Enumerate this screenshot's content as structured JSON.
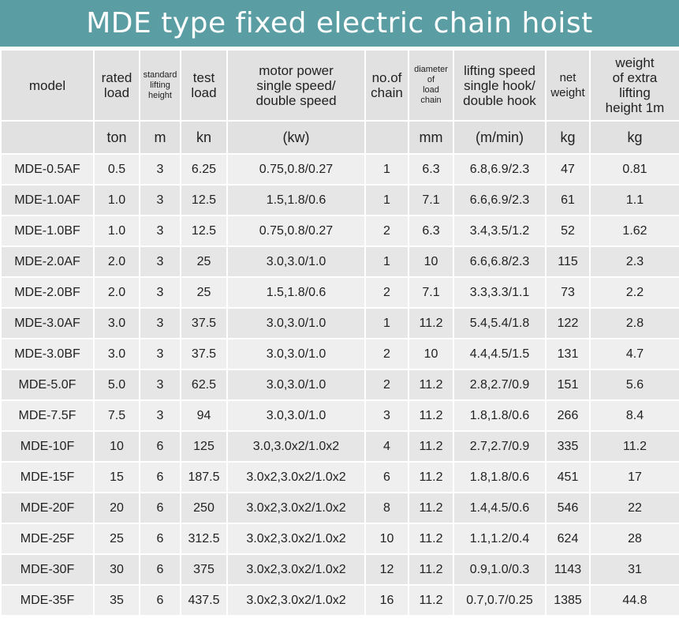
{
  "title": "MDE type fixed electric chain hoist",
  "headers": {
    "model": "model",
    "rated_load": [
      "rated",
      "load"
    ],
    "lifting_height": [
      "standard",
      "lifting",
      "height"
    ],
    "test_load": [
      "test",
      "load"
    ],
    "motor_power": [
      "motor power",
      "single speed/",
      "double speed"
    ],
    "no_of_chain": [
      "no.of",
      "chain"
    ],
    "chain_diameter": [
      "diameter",
      "of",
      "load",
      "chain"
    ],
    "lifting_speed": [
      "lifting speed",
      "single hook/",
      "double hook"
    ],
    "net_weight": [
      "net",
      "weight"
    ],
    "extra_weight": [
      "weight",
      "of extra",
      "lifting",
      "height 1m"
    ]
  },
  "units": {
    "model": "",
    "rated_load": "ton",
    "lifting_height": "m",
    "test_load": "kn",
    "motor_power": "(kw)",
    "no_of_chain": "",
    "chain_diameter": "mm",
    "lifting_speed": "(m/min)",
    "net_weight": "kg",
    "extra_weight": "kg"
  },
  "rows": [
    [
      "MDE-0.5AF",
      "0.5",
      "3",
      "6.25",
      "0.75,0.8/0.27",
      "1",
      "6.3",
      "6.8,6.9/2.3",
      "47",
      "0.81"
    ],
    [
      "MDE-1.0AF",
      "1.0",
      "3",
      "12.5",
      "1.5,1.8/0.6",
      "1",
      "7.1",
      "6.6,6.9/2.3",
      "61",
      "1.1"
    ],
    [
      "MDE-1.0BF",
      "1.0",
      "3",
      "12.5",
      "0.75,0.8/0.27",
      "2",
      "6.3",
      "3.4,3.5/1.2",
      "52",
      "1.62"
    ],
    [
      "MDE-2.0AF",
      "2.0",
      "3",
      "25",
      "3.0,3.0/1.0",
      "1",
      "10",
      "6.6,6.8/2.3",
      "115",
      "2.3"
    ],
    [
      "MDE-2.0BF",
      "2.0",
      "3",
      "25",
      "1.5,1.8/0.6",
      "2",
      "7.1",
      "3.3,3.3/1.1",
      "73",
      "2.2"
    ],
    [
      "MDE-3.0AF",
      "3.0",
      "3",
      "37.5",
      "3.0,3.0/1.0",
      "1",
      "11.2",
      "5.4,5.4/1.8",
      "122",
      "2.8"
    ],
    [
      "MDE-3.0BF",
      "3.0",
      "3",
      "37.5",
      "3.0,3.0/1.0",
      "2",
      "10",
      "4.4,4.5/1.5",
      "131",
      "4.7"
    ],
    [
      "MDE-5.0F",
      "5.0",
      "3",
      "62.5",
      "3.0,3.0/1.0",
      "2",
      "11.2",
      "2.8,2.7/0.9",
      "151",
      "5.6"
    ],
    [
      "MDE-7.5F",
      "7.5",
      "3",
      "94",
      "3.0,3.0/1.0",
      "3",
      "11.2",
      "1.8,1.8/0.6",
      "266",
      "8.4"
    ],
    [
      "MDE-10F",
      "10",
      "6",
      "125",
      "3.0,3.0x2/1.0x2",
      "4",
      "11.2",
      "2.7,2.7/0.9",
      "335",
      "11.2"
    ],
    [
      "MDE-15F",
      "15",
      "6",
      "187.5",
      "3.0x2,3.0x2/1.0x2",
      "6",
      "11.2",
      "1.8,1.8/0.6",
      "451",
      "17"
    ],
    [
      "MDE-20F",
      "20",
      "6",
      "250",
      "3.0x2,3.0x2/1.0x2",
      "8",
      "11.2",
      "1.4,4.5/0.6",
      "546",
      "22"
    ],
    [
      "MDE-25F",
      "25",
      "6",
      "312.5",
      "3.0x2,3.0x2/1.0x2",
      "10",
      "11.2",
      "1.1,1.2/0.4",
      "624",
      "28"
    ],
    [
      "MDE-30F",
      "30",
      "6",
      "375",
      "3.0x2,3.0x2/1.0x2",
      "12",
      "11.2",
      "0.9,1.0/0.3",
      "1143",
      "31"
    ],
    [
      "MDE-35F",
      "35",
      "6",
      "437.5",
      "3.0x2,3.0x2/1.0x2",
      "16",
      "11.2",
      "0.7,0.7/0.25",
      "1385",
      "44.8"
    ]
  ],
  "colors": {
    "title_bar": "#5a9ea4",
    "title_text": "#ffffff",
    "header_bg": "#e1e1e1",
    "row_bg_odd": "#efefef",
    "row_bg_even": "#e6e6e6",
    "text": "#222222"
  }
}
